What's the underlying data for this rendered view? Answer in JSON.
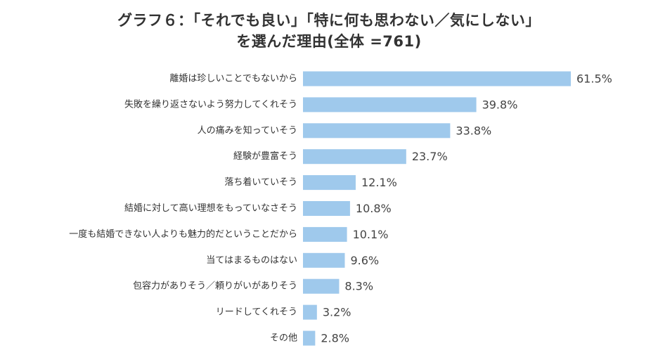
{
  "chart_data": {
    "type": "bar",
    "orientation": "horizontal",
    "title": "グラフ６：「それでも良い」「特に何も思わない／気にしない」",
    "subtitle": "を選んだ理由(全体 =761)",
    "categories": [
      "離婚は珍しいことでもないから",
      "失敗を繰り返さないよう努力してくれそう",
      "人の痛みを知っていそう",
      "経験が豊富そう",
      "落ち着いていそう",
      "結婚に対して高い理想をもっていなさそう",
      "一度も結婚できない人よりも魅力的だということだから",
      "当てはまるものはない",
      "包容力がありそう／頼りがいがありそう",
      "リードしてくれそう",
      "その他"
    ],
    "values": [
      61.5,
      39.8,
      33.8,
      23.7,
      12.1,
      10.8,
      10.1,
      9.6,
      8.3,
      3.2,
      2.8
    ],
    "value_labels": [
      "61.5%",
      "39.8%",
      "33.8%",
      "23.7%",
      "12.1%",
      "10.8%",
      "10.1%",
      "9.6%",
      "8.3%",
      "3.2%",
      "2.8%"
    ],
    "unit": "%",
    "xlim": [
      0,
      61.5
    ],
    "grid": false,
    "legend": "none",
    "bar_color": "#9fc9ec"
  }
}
